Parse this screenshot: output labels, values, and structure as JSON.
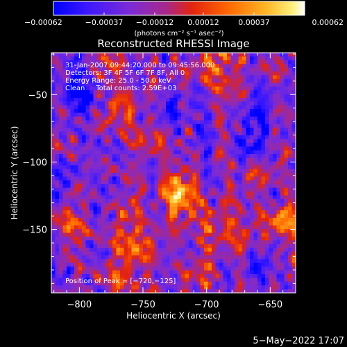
{
  "chart_data": {
    "type": "heatmap",
    "title": "Reconstructed RHESSI Image",
    "xlabel": "Heliocentric X (arcsec)",
    "ylabel": "Heliocentric Y (arcsec)",
    "xlim": [
      -822,
      -630
    ],
    "ylim": [
      -197,
      -19
    ],
    "x_ticks": [
      {
        "value": -800,
        "label": "−800"
      },
      {
        "value": -750,
        "label": "−750"
      },
      {
        "value": -700,
        "label": "−700"
      },
      {
        "value": -650,
        "label": "−650"
      }
    ],
    "y_ticks": [
      {
        "value": -50,
        "label": "−50"
      },
      {
        "value": -100,
        "label": "−100"
      },
      {
        "value": -150,
        "label": "−150"
      }
    ],
    "colorbar": {
      "min": -0.00062,
      "max": 0.00062,
      "units": "(photons cm⁻² s⁻¹ asec⁻²)",
      "ticks": [
        {
          "value": -0.00062,
          "label": "−0.00062"
        },
        {
          "value": -0.00037,
          "label": "−0.00037"
        },
        {
          "value": -0.00012,
          "label": "−0.00012"
        },
        {
          "value": 0.00012,
          "label": "0.00012"
        },
        {
          "value": 0.00037,
          "label": "0.00037"
        },
        {
          "value": 0.00062,
          "label": "0.00062"
        }
      ],
      "colormap": [
        "#0000ff",
        "#5a1cff",
        "#8f2fc0",
        "#b02670",
        "#e8230f",
        "#ff6a00",
        "#ffb020",
        "#ffe860",
        "#ffffff"
      ]
    },
    "annotations": [
      "31-Jan-2007 09:44:20.000 to 09:45:56.000",
      "Detectors: 3F 4F 5F 6F 7F 8F, All 0",
      "Energy Range: 25.0 - 50.0 keV",
      "Clean     Total counts: 2.59E+03"
    ],
    "peak_label": "Position of Peak = [−720,−125]",
    "peak": {
      "x": -720,
      "y": -125
    },
    "grid": false,
    "footer": "5−May−2022 17:07"
  }
}
